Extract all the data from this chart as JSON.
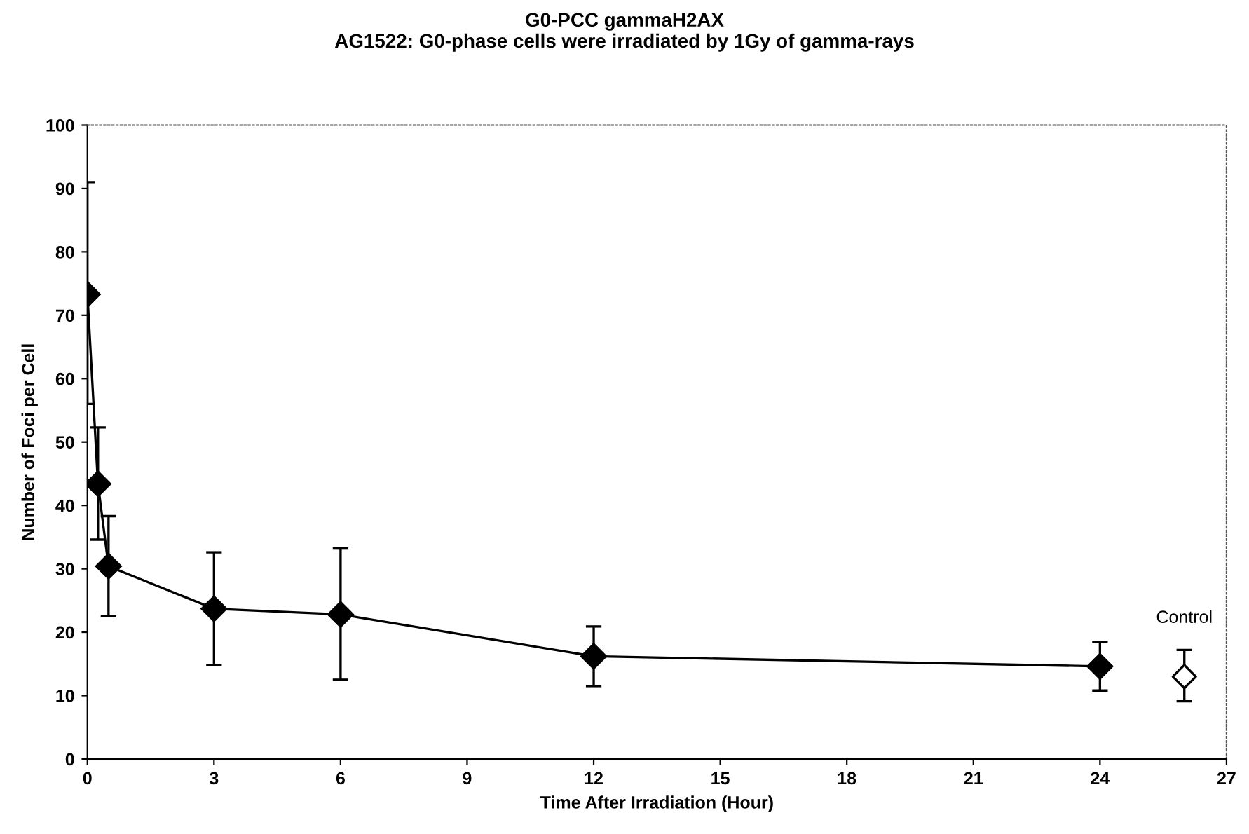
{
  "chart_data": {
    "type": "line",
    "title": "G0-PCC gammaH2AX\nAG1522: G0-phase cells were irradiated by 1Gy of gamma-rays",
    "xlabel": "Time After Irradiation (Hour)",
    "ylabel": "Number of Foci per Cell",
    "series": [
      {
        "color": "#000000",
        "x": [
          0,
          0.25,
          0.5,
          3,
          6,
          12,
          24
        ],
        "values": [
          73.3,
          43.4,
          30.4,
          23.7,
          22.8,
          16.2,
          14.6
        ],
        "errors": [
          [
            56,
            91
          ],
          [
            34.6,
            52.3
          ],
          [
            22.5,
            38.3
          ],
          [
            14.8,
            32.6
          ],
          [
            12.5,
            33.2
          ],
          [
            11.5,
            20.9
          ],
          [
            10.8,
            18.5
          ]
        ],
        "marker": "diamond"
      },
      {
        "type": "scatter",
        "name": "Control",
        "color": "#000000",
        "x": [
          26
        ],
        "values": [
          13
        ],
        "errors": [
          [
            9.1,
            17.2
          ]
        ],
        "marker": "diamond"
      }
    ],
    "xlim": [
      0,
      27
    ],
    "xticks": [
      0,
      3,
      6,
      9,
      12,
      15,
      18,
      21,
      24,
      27
    ],
    "ylim": [
      0,
      100
    ],
    "yticks": [
      0,
      10,
      20,
      30,
      40,
      50,
      60,
      70,
      80,
      90,
      100
    ],
    "grid": false,
    "legend": false
  }
}
